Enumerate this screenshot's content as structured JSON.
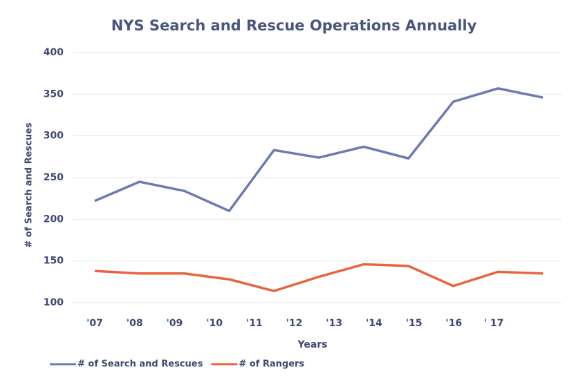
{
  "chart_data": {
    "type": "line",
    "title": "NYS Search and Rescue Operations Annually",
    "x_label": "Years",
    "y_label": "# of Search and Rescues",
    "categories": [
      "'07",
      "'08",
      "'09",
      "'10",
      "'11",
      "'12",
      "'13",
      "'14",
      "'15",
      "'16",
      "' 17"
    ],
    "series": [
      {
        "name": "# of Search and Rescues",
        "color": "#6b7bb2",
        "values": [
          222,
          245,
          234,
          210,
          283,
          274,
          287,
          273,
          341,
          357,
          346
        ]
      },
      {
        "name": "# of Rangers",
        "color": "#e8643e",
        "values": [
          138,
          135,
          135,
          128,
          114,
          131,
          146,
          144,
          120,
          137,
          135
        ]
      }
    ],
    "ylim": [
      100,
      400
    ],
    "yticks": [
      100,
      150,
      200,
      250,
      300,
      350,
      400
    ],
    "grid": true,
    "legend": "bottom-left"
  }
}
